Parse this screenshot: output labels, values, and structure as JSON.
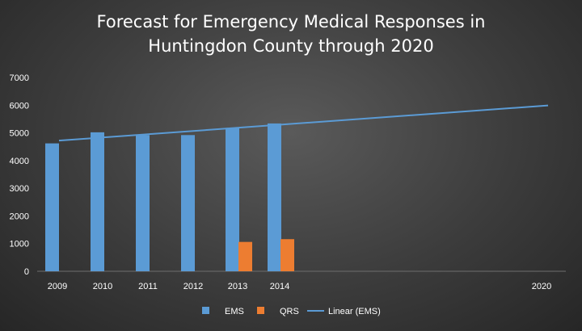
{
  "chart_data": {
    "type": "bar",
    "title_line1": "Forecast for Emergency Medical Responses in",
    "title_line2": "Huntingdon County through 2020",
    "categories": [
      "2009",
      "2010",
      "2011",
      "2012",
      "2013",
      "2014",
      "2020"
    ],
    "series": [
      {
        "name": "EMS",
        "type": "bar",
        "color": "#5b9bd5",
        "values": [
          4620,
          5020,
          4920,
          4920,
          5180,
          5340,
          null
        ]
      },
      {
        "name": "QRS",
        "type": "bar",
        "color": "#ed7d31",
        "values": [
          null,
          null,
          null,
          null,
          1060,
          1160,
          null
        ]
      },
      {
        "name": "Linear (EMS)",
        "type": "line",
        "color": "#5b9bd5",
        "start": {
          "x": "2009",
          "y": 4720
        },
        "end": {
          "x": "2020",
          "y": 5990
        }
      }
    ],
    "ylim": [
      0,
      7000
    ],
    "yticks": [
      "0",
      "1000",
      "2000",
      "3000",
      "4000",
      "5000",
      "6000",
      "7000"
    ],
    "grid": false,
    "legend_position": "bottom"
  }
}
